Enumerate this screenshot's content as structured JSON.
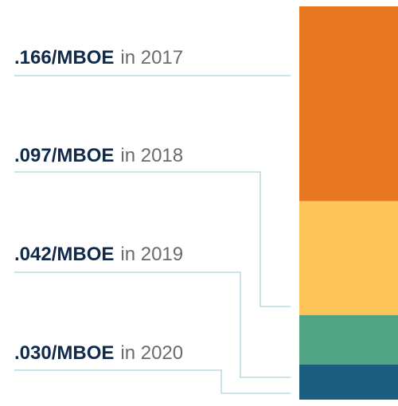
{
  "chart_data": {
    "type": "stacked-bar",
    "series": [
      {
        "name": "in 2017",
        "color": "#e87722",
        "values": [
          0.166
        ],
        "value_labels": [
          ".166/MBOE"
        ]
      },
      {
        "name": "in 2018",
        "color": "#fec659",
        "values": [
          0.097
        ],
        "value_labels": [
          ".097/MBOE"
        ]
      },
      {
        "name": "in 2019",
        "color": "#52a584",
        "values": [
          0.042
        ],
        "value_labels": [
          ".042/MBOE"
        ]
      },
      {
        "name": "in 2020",
        "color": "#1b5e7f",
        "values": [
          0.03
        ],
        "value_labels": [
          ".030/MBOE"
        ]
      }
    ]
  }
}
